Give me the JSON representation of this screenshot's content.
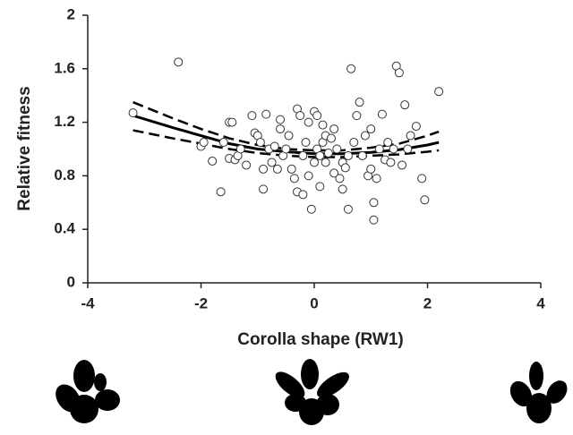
{
  "chart_data": {
    "type": "scatter",
    "xlabel": "Corolla shape (RW1)",
    "ylabel": "Relative fitness",
    "xlim": [
      -4,
      4
    ],
    "ylim": [
      0,
      2
    ],
    "xticks": [
      -4,
      -2,
      0,
      2,
      4
    ],
    "yticks": [
      0,
      0.4,
      0.8,
      1.2,
      1.6,
      2
    ],
    "points": {
      "color": "#ffffff",
      "x": [
        -3.2,
        -2.4,
        -2.0,
        -1.95,
        -1.8,
        -1.65,
        -1.6,
        -1.5,
        -1.45,
        -1.5,
        -1.4,
        -1.35,
        -1.3,
        -1.2,
        -1.1,
        -1.05,
        -1.0,
        -0.95,
        -0.9,
        -0.9,
        -0.85,
        -0.8,
        -0.75,
        -0.7,
        -0.65,
        -0.6,
        -0.55,
        -0.5,
        -0.45,
        -0.4,
        -0.35,
        -0.3,
        -0.3,
        -0.25,
        -0.2,
        -0.2,
        -0.15,
        -0.1,
        -0.1,
        -0.05,
        0,
        0,
        0.05,
        0.05,
        0.1,
        0.1,
        0.15,
        0.2,
        0.2,
        0.25,
        0.3,
        0.35,
        0.35,
        0.4,
        0.45,
        0.5,
        0.5,
        0.55,
        0.6,
        0.6,
        0.65,
        0.7,
        0.75,
        0.8,
        0.85,
        0.9,
        0.95,
        1.0,
        1.05,
        1.05,
        1.1,
        1.15,
        1.2,
        1.25,
        1.3,
        1.35,
        1.4,
        1.45,
        1.5,
        1.55,
        1.6,
        1.65,
        1.7,
        1.8,
        1.9,
        1.95,
        2.2,
        0.15,
        -0.6,
        1.0
      ],
      "values": [
        1.27,
        1.65,
        1.02,
        1.05,
        0.91,
        0.68,
        1.05,
        1.2,
        1.2,
        0.93,
        0.92,
        0.95,
        1.0,
        0.88,
        1.25,
        1.12,
        1.1,
        1.05,
        0.85,
        0.7,
        1.26,
        1.0,
        0.9,
        1.02,
        0.85,
        1.22,
        0.95,
        1.0,
        1.1,
        0.85,
        0.78,
        1.3,
        0.68,
        1.25,
        0.95,
        0.66,
        1.05,
        1.2,
        0.8,
        0.55,
        1.28,
        0.9,
        1.25,
        1.0,
        0.72,
        0.95,
        1.05,
        1.1,
        0.9,
        0.97,
        1.08,
        1.15,
        0.82,
        1.0,
        0.78,
        0.7,
        0.9,
        0.86,
        0.55,
        0.95,
        1.6,
        1.05,
        1.25,
        1.35,
        0.95,
        1.1,
        0.8,
        0.85,
        0.6,
        0.47,
        0.78,
        1.0,
        1.26,
        0.92,
        1.05,
        0.9,
        1.0,
        1.62,
        1.57,
        0.88,
        1.33,
        1.0,
        1.1,
        1.17,
        0.78,
        0.62,
        1.43,
        1.18,
        1.15,
        1.15
      ]
    },
    "lines": [
      {
        "style": "solid",
        "x": [
          -3.2,
          -2.5,
          -2,
          -1.5,
          -1,
          -0.5,
          0,
          0.5,
          1,
          1.5,
          2,
          2.2
        ],
        "values": [
          1.25,
          1.16,
          1.1,
          1.04,
          1.0,
          0.98,
          0.965,
          0.965,
          0.975,
          0.995,
          1.03,
          1.05
        ]
      },
      {
        "style": "dashed",
        "x": [
          -3.2,
          -2.5,
          -2,
          -1.5,
          -1,
          -0.5,
          0,
          0.5,
          1,
          1.5,
          2,
          2.2
        ],
        "values": [
          1.35,
          1.23,
          1.15,
          1.08,
          1.03,
          1.0,
          0.99,
          0.99,
          1.01,
          1.04,
          1.1,
          1.13
        ]
      },
      {
        "style": "dashed",
        "x": [
          -3.2,
          -2.5,
          -2,
          -1.5,
          -1,
          -0.5,
          0,
          0.5,
          1,
          1.5,
          2,
          2.2
        ],
        "values": [
          1.14,
          1.08,
          1.04,
          1.0,
          0.97,
          0.95,
          0.94,
          0.94,
          0.95,
          0.96,
          0.98,
          0.99
        ]
      }
    ]
  }
}
